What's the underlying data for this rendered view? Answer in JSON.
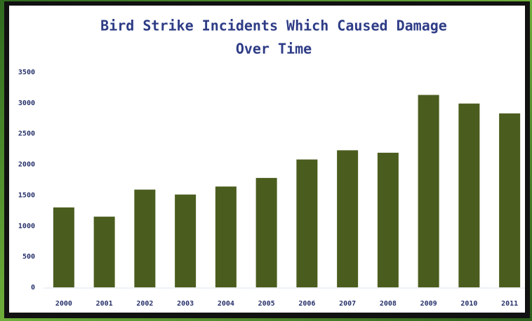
{
  "chart_data": {
    "type": "bar",
    "title": [
      "Bird Strike Incidents Which Caused Damage",
      "Over Time"
    ],
    "categories": [
      "2000",
      "2001",
      "2002",
      "2003",
      "2004",
      "2005",
      "2006",
      "2007",
      "2008",
      "2009",
      "2010",
      "2011"
    ],
    "values": [
      1300,
      1150,
      1590,
      1510,
      1640,
      1780,
      2080,
      2230,
      2190,
      3130,
      2990,
      2830
    ],
    "color": "#4b5d1e",
    "ylim": [
      0,
      3500
    ],
    "yticks": [
      0,
      500,
      1000,
      1500,
      2000,
      2500,
      3000,
      3500
    ],
    "grid": false
  }
}
